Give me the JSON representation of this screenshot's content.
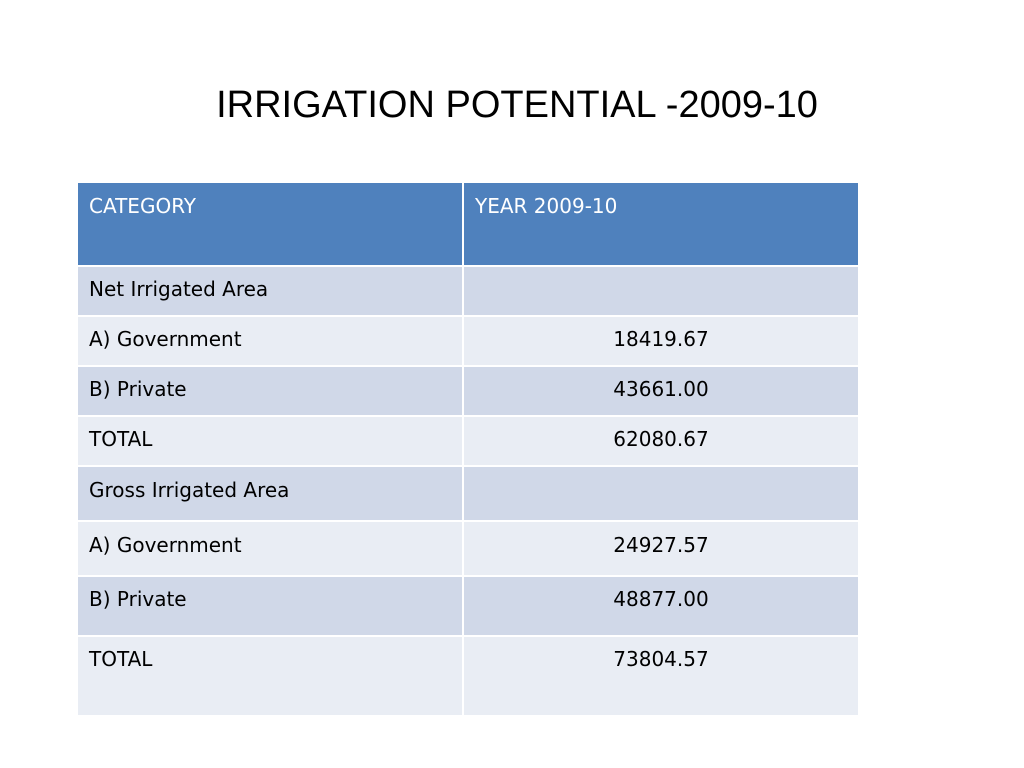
{
  "title": "IRRIGATION POTENTIAL -2009-10",
  "table": {
    "headers": [
      "CATEGORY",
      "YEAR 2009-10"
    ],
    "rows": [
      {
        "category": "Net Irrigated Area",
        "value": ""
      },
      {
        "category": "A) Government",
        "value": "18419.67"
      },
      {
        "category": "B) Private",
        "value": "43661.00"
      },
      {
        "category": "TOTAL",
        "value": "62080.67"
      },
      {
        "category": "Gross Irrigated Area",
        "value": ""
      },
      {
        "category": "A) Government",
        "value": "24927.57"
      },
      {
        "category": "B) Private",
        "value": "48877.00"
      },
      {
        "category": "TOTAL",
        "value": "73804.57"
      }
    ]
  },
  "colors": {
    "header_bg": "#4f81bd",
    "row_dark": "#d0d8e8",
    "row_light": "#e9edf4"
  }
}
